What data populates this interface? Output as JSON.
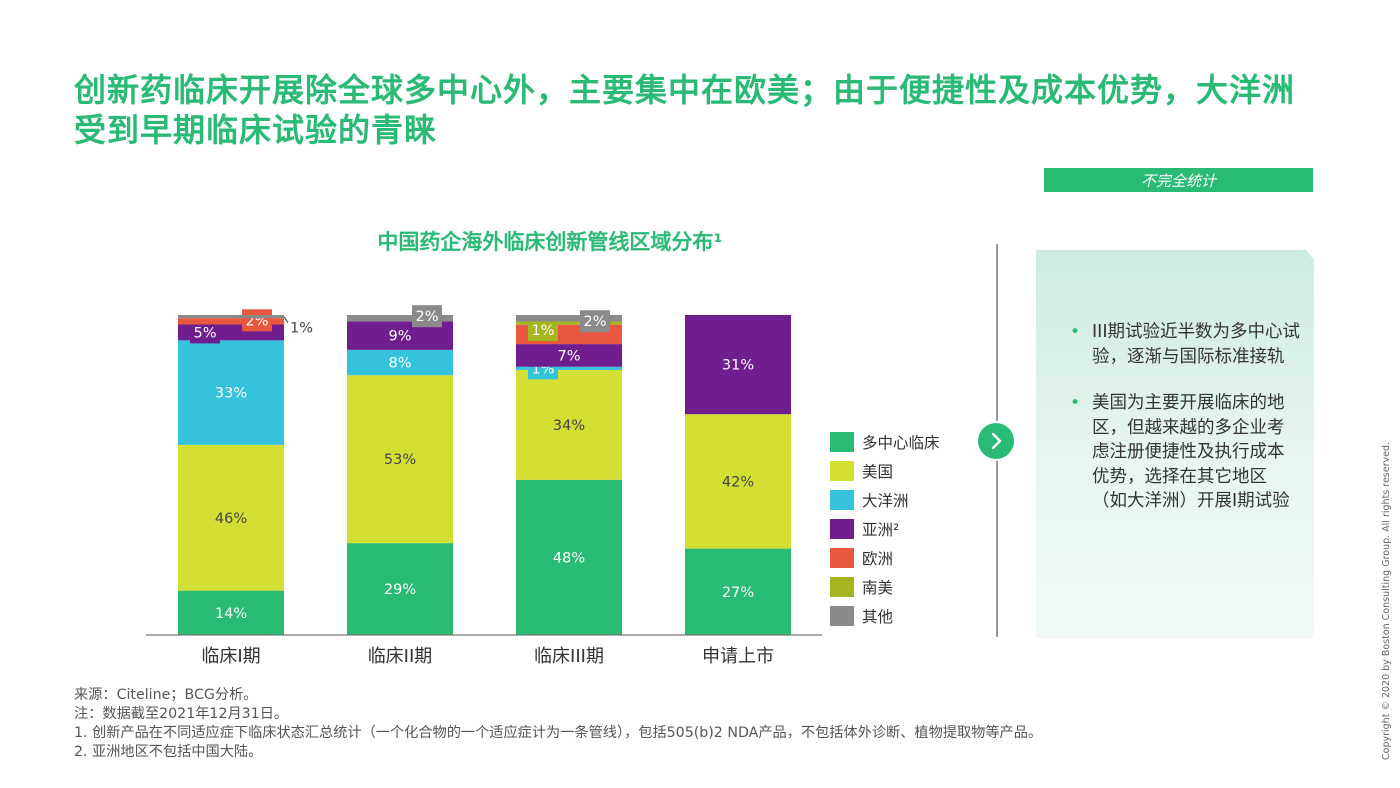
{
  "header": {
    "title": "创新药临床开展除全球多中心外，主要集中在欧美；由于便捷性及成本优势，大洋洲受到早期临床试验的青睐",
    "badge": "不完全统计"
  },
  "colors": {
    "brand_green": "#29ba74",
    "text_dark": "#333333",
    "arrow": "#29ba74"
  },
  "chart_data": {
    "type": "bar",
    "stacked": true,
    "title": "中国药企海外临床创新管线区域分布¹",
    "categories": [
      "临床I期",
      "临床II期",
      "临床III期",
      "申请上市"
    ],
    "series": [
      {
        "name": "多中心临床",
        "color": "#29ba74",
        "values": [
          14,
          29,
          48,
          27
        ],
        "labels": [
          "14%",
          "29%",
          "48%",
          "27%"
        ]
      },
      {
        "name": "美国",
        "color": "#d4df33",
        "values": [
          46,
          53,
          34,
          42
        ],
        "labels": [
          "46%",
          "53%",
          "34%",
          "42%"
        ]
      },
      {
        "name": "大洋洲",
        "color": "#34c2dc",
        "values": [
          33,
          8,
          1,
          0
        ],
        "labels": [
          "33%",
          "8%",
          "1%",
          ""
        ]
      },
      {
        "name": "亚洲²",
        "color": "#6f1d8f",
        "values": [
          5,
          9,
          7,
          31
        ],
        "labels": [
          "5%",
          "9%",
          "7%",
          "31%"
        ]
      },
      {
        "name": "欧洲",
        "color": "#e9573f",
        "values": [
          2,
          0,
          6,
          0
        ],
        "labels": [
          "2%",
          "",
          "",
          ""
        ]
      },
      {
        "name": "南美",
        "color": "#a4b51f",
        "values": [
          0,
          0,
          1,
          0
        ],
        "labels": [
          "",
          "",
          "1%",
          ""
        ]
      },
      {
        "name": "其他",
        "color": "#8a8a8a",
        "values": [
          1,
          2,
          2,
          0
        ],
        "labels": [
          "1%",
          "2%",
          "2%",
          ""
        ]
      }
    ],
    "ylim": [
      0,
      100
    ],
    "legend": "right"
  },
  "panel": {
    "bullets": [
      "III期试验近半数为多中心试验，逐渐与国际标准接轨",
      "美国为主要开展临床的地区，但越来越的多企业考虑注册便捷性及执行成本优势，选择在其它地区（如大洋洲）开展I期试验"
    ]
  },
  "footnotes": {
    "source": "来源：Citeline；BCG分析。",
    "note": "注：数据截至2021年12月31日。",
    "note1": "1. 创新产品在不同适应症下临床状态汇总统计（一个化合物的一个适应症计为一条管线），包括505(b)2 NDA产品，不包括体外诊断、植物提取物等产品。",
    "note2": "2. 亚洲地区不包括中国大陆。"
  },
  "copyright": "Copyright © 2020 by Boston Consulting Group. All rights reserved."
}
